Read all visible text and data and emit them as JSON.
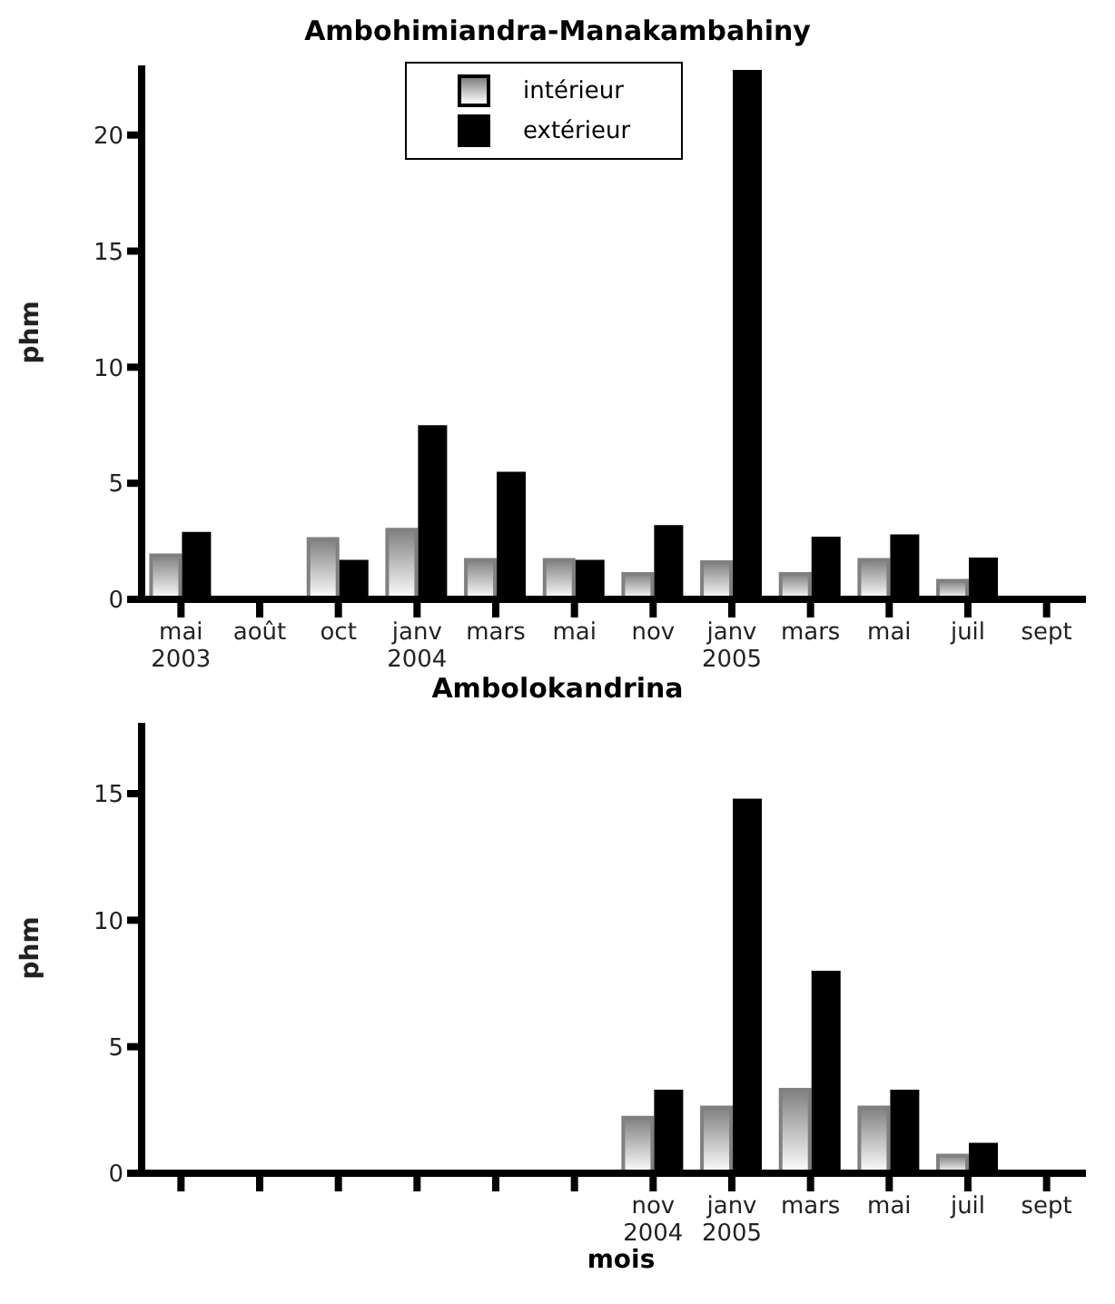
{
  "chart_data": [
    {
      "type": "bar",
      "title": "Ambohimiandra-Manakambahiny",
      "ylabel": "phm",
      "categories": [
        "mai\n2003",
        "août",
        "oct",
        "janv\n2004",
        "mars",
        "mai",
        "nov",
        "janv\n2005",
        "mars",
        "mai",
        "juil",
        "sept"
      ],
      "series": [
        {
          "name": "intérieur",
          "color": "#808080",
          "values": [
            1.9,
            0,
            2.6,
            3.0,
            1.7,
            1.7,
            1.1,
            1.6,
            1.1,
            1.7,
            0.8,
            0
          ]
        },
        {
          "name": "extérieur",
          "color": "#000000",
          "values": [
            2.9,
            0,
            1.7,
            7.5,
            5.5,
            1.7,
            3.2,
            22.8,
            2.7,
            2.8,
            1.8,
            0
          ]
        }
      ],
      "ylim": [
        0,
        23
      ],
      "yticks": [
        0,
        5,
        10,
        15,
        20
      ],
      "grid": false,
      "legend": "top"
    },
    {
      "type": "bar",
      "title": "Ambolokandrina",
      "ylabel": "phm",
      "xlabel": "mois",
      "categories": [
        null,
        null,
        null,
        null,
        null,
        null,
        "nov\n2004",
        "janv\n2005",
        "mars",
        "mai",
        "juil",
        "sept"
      ],
      "series": [
        {
          "color": "#808080",
          "values": [
            0,
            0,
            0,
            0,
            0,
            0,
            2.2,
            2.6,
            3.3,
            2.6,
            0.7,
            0
          ]
        },
        {
          "color": "#000000",
          "values": [
            0,
            0,
            0,
            0,
            0,
            0,
            3.3,
            14.8,
            8.0,
            3.3,
            1.2,
            0
          ]
        }
      ],
      "ylim": [
        0,
        17.8
      ],
      "yticks": [
        0,
        5,
        10,
        15
      ],
      "grid": false,
      "legend": false
    }
  ]
}
